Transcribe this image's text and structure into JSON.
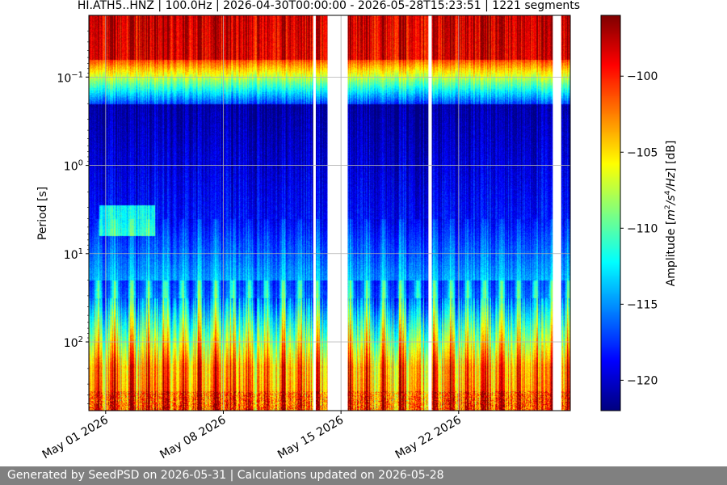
{
  "chart_data": {
    "type": "heatmap",
    "title": "HI.ATH5..HNZ | 100.0Hz | 2026-04-30T00:00:00 - 2026-05-28T15:23:51 | 1221 segments",
    "xlabel": "",
    "ylabel": "Period [s]",
    "colorbar_label": "Amplitude [m²/s⁴/Hz] [dB]",
    "colorbar_label_parts": {
      "prefix": "Amplitude [",
      "m": "m",
      "sup2": "2",
      "mid": "/s",
      "sup4": "4",
      "hz": "/Hz",
      "suffix": "] [dB]"
    },
    "colormap": "jet",
    "x_tick_labels": [
      "May 01 2026",
      "May 08 2026",
      "May 15 2026",
      "May 22 2026"
    ],
    "x_ticks_day": [
      1,
      8,
      15,
      22
    ],
    "x_range_day": [
      0.0,
      28.64
    ],
    "y_scale": "log",
    "y_range": [
      0.02,
      600
    ],
    "y_ticks": [
      0.1,
      1,
      10,
      100
    ],
    "y_tick_labels": [
      {
        "base": "10",
        "exp": "−1"
      },
      {
        "base": "10",
        "exp": "0"
      },
      {
        "base": "10",
        "exp": "1"
      },
      {
        "base": "10",
        "exp": "2"
      }
    ],
    "color_range": [
      -122,
      -96
    ],
    "colorbar_ticks": [
      -100,
      -105,
      -110,
      -115,
      -120
    ],
    "colorbar_tick_labels": [
      "−100",
      "−105",
      "−110",
      "−115",
      "−120"
    ],
    "data_gaps_day": [
      [
        13.35,
        13.5
      ],
      [
        14.2,
        15.4
      ],
      [
        20.2,
        20.4
      ],
      [
        27.6,
        28.1
      ]
    ],
    "grid": true
  },
  "footer": {
    "text": "Generated by SeedPSD on 2026-05-31 | Calculations updated on 2026-05-28"
  }
}
